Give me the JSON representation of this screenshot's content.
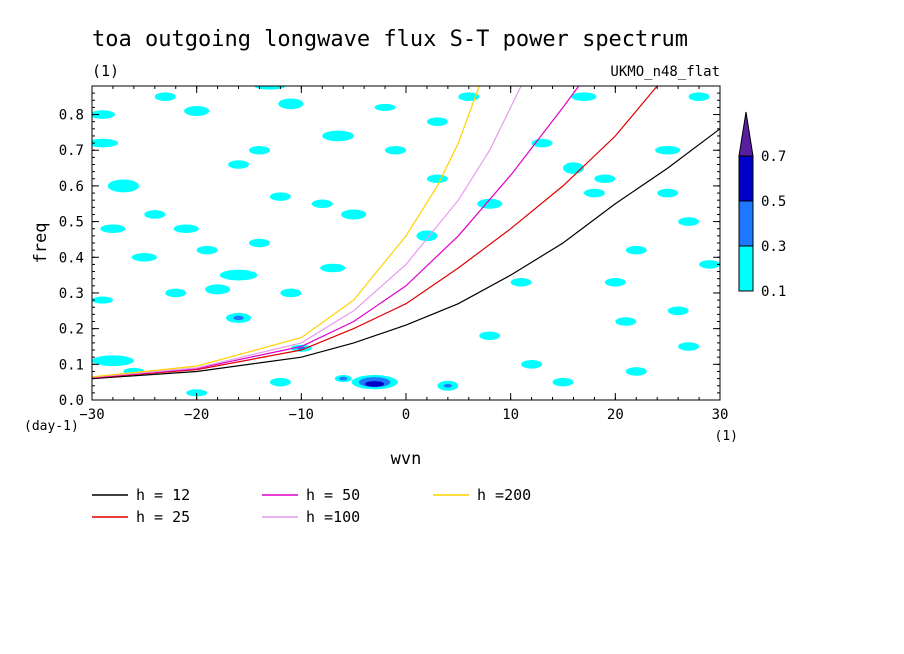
{
  "chart_data": {
    "type": "heatmap",
    "title": "toa outgoing longwave flux S-T power spectrum",
    "units_note": "(1)",
    "model_label": "UKMO_n48_flat",
    "xlabel": "wvn",
    "ylabel": "freq",
    "x_units": "(1)",
    "y_units": "(day-1)",
    "xlim": [
      -30,
      30
    ],
    "ylim": [
      0,
      0.88
    ],
    "x_ticks": [
      -30,
      -20,
      -10,
      0,
      10,
      20,
      30
    ],
    "x_tick_labels": [
      "−30",
      "−20",
      "−10",
      "0",
      "10",
      "20",
      "30"
    ],
    "y_ticks": [
      0,
      0.1,
      0.2,
      0.3,
      0.4,
      0.5,
      0.6,
      0.7,
      0.8
    ],
    "y_tick_labels": [
      "0.0",
      "0.1",
      "0.2",
      "0.3",
      "0.4",
      "0.5",
      "0.6",
      "0.7",
      "0.8"
    ],
    "colorbar": {
      "levels": [
        "0.1",
        "0.3",
        "0.5",
        "0.7"
      ],
      "colors": [
        "#00ffff",
        "#1e78ff",
        "#0000c8",
        "#5a1ea0"
      ]
    },
    "dispersion_curves": [
      {
        "name": "h = 12",
        "color": "#000000",
        "points": [
          [
            -30,
            0.06
          ],
          [
            -20,
            0.08
          ],
          [
            -10,
            0.12
          ],
          [
            -5,
            0.16
          ],
          [
            0,
            0.21
          ],
          [
            5,
            0.27
          ],
          [
            10,
            0.35
          ],
          [
            15,
            0.44
          ],
          [
            20,
            0.55
          ],
          [
            25,
            0.65
          ],
          [
            30,
            0.76
          ]
        ]
      },
      {
        "name": "h = 25",
        "color": "#e00000",
        "points": [
          [
            -30,
            0.062
          ],
          [
            -20,
            0.085
          ],
          [
            -10,
            0.14
          ],
          [
            -5,
            0.2
          ],
          [
            0,
            0.27
          ],
          [
            5,
            0.37
          ],
          [
            10,
            0.48
          ],
          [
            15,
            0.6
          ],
          [
            20,
            0.74
          ],
          [
            24,
            0.88
          ]
        ]
      },
      {
        "name": "h = 50",
        "color": "#e000c8",
        "points": [
          [
            -30,
            0.063
          ],
          [
            -20,
            0.088
          ],
          [
            -10,
            0.15
          ],
          [
            -5,
            0.22
          ],
          [
            0,
            0.32
          ],
          [
            5,
            0.46
          ],
          [
            10,
            0.63
          ],
          [
            15,
            0.82
          ],
          [
            16.5,
            0.88
          ]
        ]
      },
      {
        "name": "h =100",
        "color": "#e69bf0",
        "points": [
          [
            -30,
            0.064
          ],
          [
            -20,
            0.09
          ],
          [
            -10,
            0.16
          ],
          [
            -5,
            0.25
          ],
          [
            0,
            0.38
          ],
          [
            5,
            0.56
          ],
          [
            8,
            0.7
          ],
          [
            11,
            0.88
          ]
        ]
      },
      {
        "name": "h =200",
        "color": "#ffd200",
        "points": [
          [
            -30,
            0.065
          ],
          [
            -20,
            0.095
          ],
          [
            -10,
            0.175
          ],
          [
            -5,
            0.28
          ],
          [
            0,
            0.46
          ],
          [
            3,
            0.6
          ],
          [
            5,
            0.72
          ],
          [
            7,
            0.88
          ]
        ]
      }
    ],
    "blobs": [
      {
        "x": -29,
        "y": 0.8,
        "rx": 1.2,
        "ry": 0.012,
        "level": 0
      },
      {
        "x": -29,
        "y": 0.72,
        "rx": 1.5,
        "ry": 0.012,
        "level": 0
      },
      {
        "x": -27,
        "y": 0.6,
        "rx": 1.5,
        "ry": 0.018,
        "level": 0
      },
      {
        "x": -28,
        "y": 0.48,
        "rx": 1.2,
        "ry": 0.012,
        "level": 0
      },
      {
        "x": -25,
        "y": 0.4,
        "rx": 1.2,
        "ry": 0.012,
        "level": 0
      },
      {
        "x": -29,
        "y": 0.28,
        "rx": 1.0,
        "ry": 0.01,
        "level": 0
      },
      {
        "x": -28,
        "y": 0.11,
        "rx": 2.0,
        "ry": 0.015,
        "level": 0
      },
      {
        "x": -26,
        "y": 0.08,
        "rx": 1.0,
        "ry": 0.01,
        "level": 0
      },
      {
        "x": -23,
        "y": 0.85,
        "rx": 1.0,
        "ry": 0.012,
        "level": 0
      },
      {
        "x": -20,
        "y": 0.81,
        "rx": 1.2,
        "ry": 0.014,
        "level": 0
      },
      {
        "x": -24,
        "y": 0.52,
        "rx": 1.0,
        "ry": 0.012,
        "level": 0
      },
      {
        "x": -21,
        "y": 0.48,
        "rx": 1.2,
        "ry": 0.012,
        "level": 0
      },
      {
        "x": -19,
        "y": 0.42,
        "rx": 1.0,
        "ry": 0.012,
        "level": 0
      },
      {
        "x": -22,
        "y": 0.3,
        "rx": 1.0,
        "ry": 0.012,
        "level": 0
      },
      {
        "x": -16,
        "y": 0.66,
        "rx": 1.0,
        "ry": 0.012,
        "level": 0
      },
      {
        "x": -18,
        "y": 0.31,
        "rx": 1.2,
        "ry": 0.014,
        "level": 0
      },
      {
        "x": -16,
        "y": 0.35,
        "rx": 1.8,
        "ry": 0.015,
        "level": 0
      },
      {
        "x": -16,
        "y": 0.23,
        "rx": 1.2,
        "ry": 0.014,
        "level": 0
      },
      {
        "x": -16,
        "y": 0.23,
        "rx": 0.5,
        "ry": 0.006,
        "level": 1
      },
      {
        "x": -13,
        "y": 0.88,
        "rx": 1.5,
        "ry": 0.01,
        "level": 0
      },
      {
        "x": -11,
        "y": 0.83,
        "rx": 1.2,
        "ry": 0.015,
        "level": 0
      },
      {
        "x": -14,
        "y": 0.7,
        "rx": 1.0,
        "ry": 0.012,
        "level": 0
      },
      {
        "x": -14,
        "y": 0.44,
        "rx": 1.0,
        "ry": 0.012,
        "level": 0
      },
      {
        "x": -12,
        "y": 0.57,
        "rx": 1.0,
        "ry": 0.012,
        "level": 0
      },
      {
        "x": -11,
        "y": 0.3,
        "rx": 1.0,
        "ry": 0.012,
        "level": 0
      },
      {
        "x": -10,
        "y": 0.145,
        "rx": 1.0,
        "ry": 0.01,
        "level": 0
      },
      {
        "x": -10,
        "y": 0.145,
        "rx": 0.4,
        "ry": 0.005,
        "level": 1
      },
      {
        "x": -7,
        "y": 0.37,
        "rx": 1.2,
        "ry": 0.012,
        "level": 0
      },
      {
        "x": -6,
        "y": 0.74,
        "rx": 1.0,
        "ry": 0.012,
        "level": 0
      },
      {
        "x": -8,
        "y": 0.55,
        "rx": 1.0,
        "ry": 0.012,
        "level": 0
      },
      {
        "x": -6.5,
        "y": 0.74,
        "rx": 1.5,
        "ry": 0.015,
        "level": 0
      },
      {
        "x": -5,
        "y": 0.52,
        "rx": 1.2,
        "ry": 0.014,
        "level": 0
      },
      {
        "x": -3,
        "y": 0.05,
        "rx": 2.2,
        "ry": 0.02,
        "level": 0
      },
      {
        "x": -3,
        "y": 0.05,
        "rx": 1.5,
        "ry": 0.014,
        "level": 1
      },
      {
        "x": -3,
        "y": 0.045,
        "rx": 0.9,
        "ry": 0.008,
        "level": 2
      },
      {
        "x": -6,
        "y": 0.06,
        "rx": 0.8,
        "ry": 0.01,
        "level": 0
      },
      {
        "x": -6,
        "y": 0.06,
        "rx": 0.4,
        "ry": 0.005,
        "level": 1
      },
      {
        "x": -2,
        "y": 0.82,
        "rx": 1.0,
        "ry": 0.01,
        "level": 0
      },
      {
        "x": -1,
        "y": 0.7,
        "rx": 1.0,
        "ry": 0.012,
        "level": 0
      },
      {
        "x": 2,
        "y": 0.46,
        "rx": 1.0,
        "ry": 0.015,
        "level": 0
      },
      {
        "x": 3,
        "y": 0.62,
        "rx": 1.0,
        "ry": 0.012,
        "level": 0
      },
      {
        "x": 4,
        "y": 0.04,
        "rx": 1.0,
        "ry": 0.014,
        "level": 0
      },
      {
        "x": 4,
        "y": 0.04,
        "rx": 0.4,
        "ry": 0.005,
        "level": 1
      },
      {
        "x": 3,
        "y": 0.78,
        "rx": 1.0,
        "ry": 0.012,
        "level": 0
      },
      {
        "x": 6,
        "y": 0.85,
        "rx": 1.0,
        "ry": 0.012,
        "level": 0
      },
      {
        "x": 8,
        "y": 0.55,
        "rx": 1.2,
        "ry": 0.014,
        "level": 0
      },
      {
        "x": 8,
        "y": 0.18,
        "rx": 1.0,
        "ry": 0.012,
        "level": 0
      },
      {
        "x": 11,
        "y": 0.33,
        "rx": 1.0,
        "ry": 0.012,
        "level": 0
      },
      {
        "x": 13,
        "y": 0.72,
        "rx": 1.0,
        "ry": 0.012,
        "level": 0
      },
      {
        "x": 16,
        "y": 0.65,
        "rx": 1.0,
        "ry": 0.016,
        "level": 0
      },
      {
        "x": 18,
        "y": 0.58,
        "rx": 1.0,
        "ry": 0.012,
        "level": 0
      },
      {
        "x": 17,
        "y": 0.85,
        "rx": 1.2,
        "ry": 0.012,
        "level": 0
      },
      {
        "x": 19,
        "y": 0.62,
        "rx": 1.0,
        "ry": 0.012,
        "level": 0
      },
      {
        "x": 20,
        "y": 0.33,
        "rx": 1.0,
        "ry": 0.012,
        "level": 0
      },
      {
        "x": 21,
        "y": 0.22,
        "rx": 1.0,
        "ry": 0.012,
        "level": 0
      },
      {
        "x": 22,
        "y": 0.42,
        "rx": 1.0,
        "ry": 0.012,
        "level": 0
      },
      {
        "x": 25,
        "y": 0.7,
        "rx": 1.2,
        "ry": 0.012,
        "level": 0
      },
      {
        "x": 25,
        "y": 0.58,
        "rx": 1.0,
        "ry": 0.012,
        "level": 0
      },
      {
        "x": 27,
        "y": 0.5,
        "rx": 1.0,
        "ry": 0.012,
        "level": 0
      },
      {
        "x": 26,
        "y": 0.25,
        "rx": 1.0,
        "ry": 0.012,
        "level": 0
      },
      {
        "x": 27,
        "y": 0.15,
        "rx": 1.0,
        "ry": 0.012,
        "level": 0
      },
      {
        "x": 28,
        "y": 0.85,
        "rx": 1.0,
        "ry": 0.012,
        "level": 0
      },
      {
        "x": 12,
        "y": 0.1,
        "rx": 1.0,
        "ry": 0.012,
        "level": 0
      },
      {
        "x": 15,
        "y": 0.05,
        "rx": 1.0,
        "ry": 0.012,
        "level": 0
      },
      {
        "x": -20,
        "y": 0.02,
        "rx": 1.0,
        "ry": 0.01,
        "level": 0
      },
      {
        "x": -12,
        "y": 0.05,
        "rx": 1.0,
        "ry": 0.012,
        "level": 0
      },
      {
        "x": 22,
        "y": 0.08,
        "rx": 1.0,
        "ry": 0.012,
        "level": 0
      },
      {
        "x": 29,
        "y": 0.38,
        "rx": 1.0,
        "ry": 0.012,
        "level": 0
      }
    ]
  }
}
